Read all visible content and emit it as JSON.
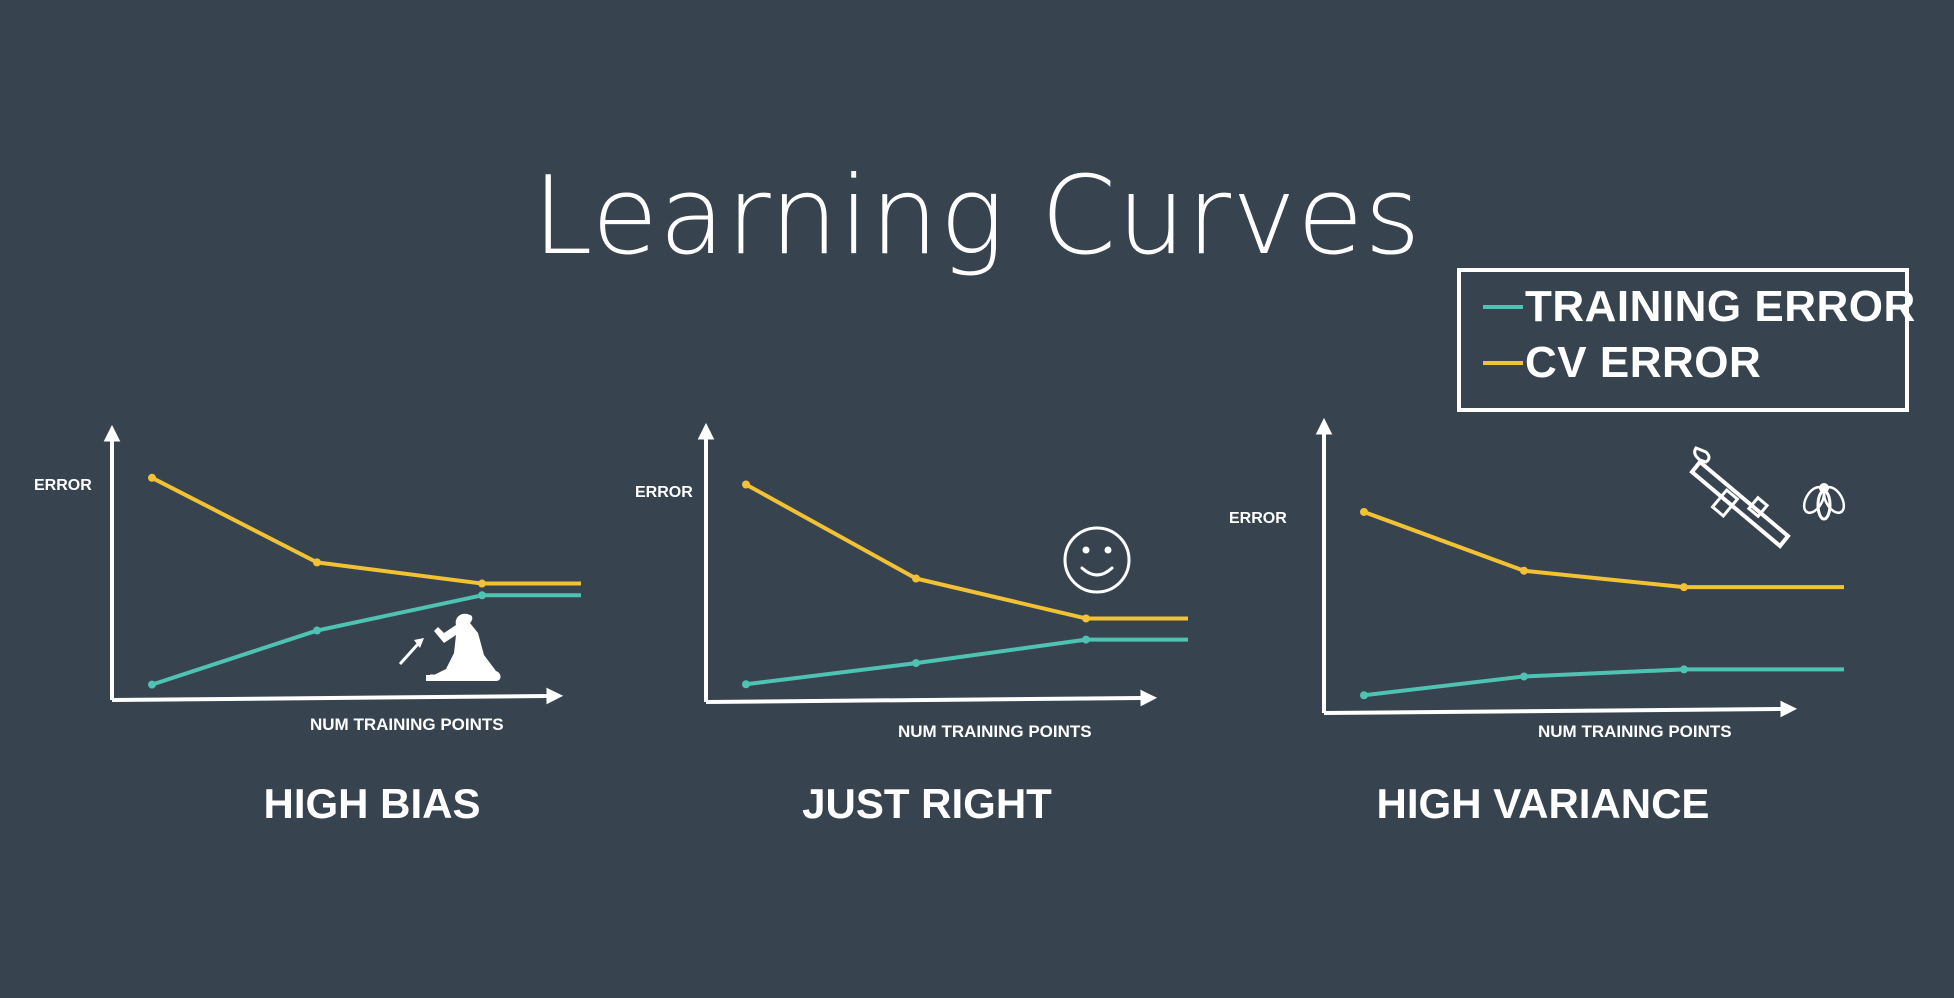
{
  "title": "Learning Curves",
  "legend": {
    "training_label": "TRAINING ERROR",
    "cv_label": "CV ERROR",
    "training_color": "#4fc3b3",
    "cv_color": "#f2c234"
  },
  "chart_data": [
    {
      "type": "line",
      "title": "HIGH BIAS",
      "xlabel": "NUM TRAINING POINTS",
      "ylabel": "ERROR",
      "x": [
        1,
        2,
        3,
        3.6
      ],
      "ylim": [
        0,
        10
      ],
      "xlim": [
        0,
        4
      ],
      "series": [
        {
          "name": "CV ERROR",
          "values": [
            9.2,
            5.6,
            4.7,
            4.7
          ]
        },
        {
          "name": "TRAINING ERROR",
          "values": [
            0.4,
            2.7,
            4.2,
            4.2
          ]
        }
      ],
      "icon": "dart-thrower-icon"
    },
    {
      "type": "line",
      "title": "JUST RIGHT",
      "xlabel": "NUM TRAINING POINTS",
      "ylabel": "ERROR",
      "x": [
        1,
        2,
        3,
        3.6
      ],
      "ylim": [
        0,
        10
      ],
      "xlim": [
        0,
        4
      ],
      "series": [
        {
          "name": "CV ERROR",
          "values": [
            9.0,
            5.0,
            3.3,
            3.3
          ]
        },
        {
          "name": "TRAINING ERROR",
          "values": [
            0.5,
            1.4,
            2.4,
            2.4
          ]
        }
      ],
      "icon": "smiley-icon"
    },
    {
      "type": "line",
      "title": "HIGH VARIANCE",
      "xlabel": "NUM TRAINING POINTS",
      "ylabel": "ERROR",
      "x": [
        1,
        2,
        3,
        4
      ],
      "ylim": [
        0,
        10
      ],
      "xlim": [
        0,
        4.5
      ],
      "series": [
        {
          "name": "CV ERROR",
          "values": [
            8.3,
            5.8,
            5.1,
            5.1
          ]
        },
        {
          "name": "TRAINING ERROR",
          "values": [
            0.5,
            1.3,
            1.6,
            1.6
          ]
        }
      ],
      "icon": "bazooka-and-fly-icon"
    }
  ]
}
